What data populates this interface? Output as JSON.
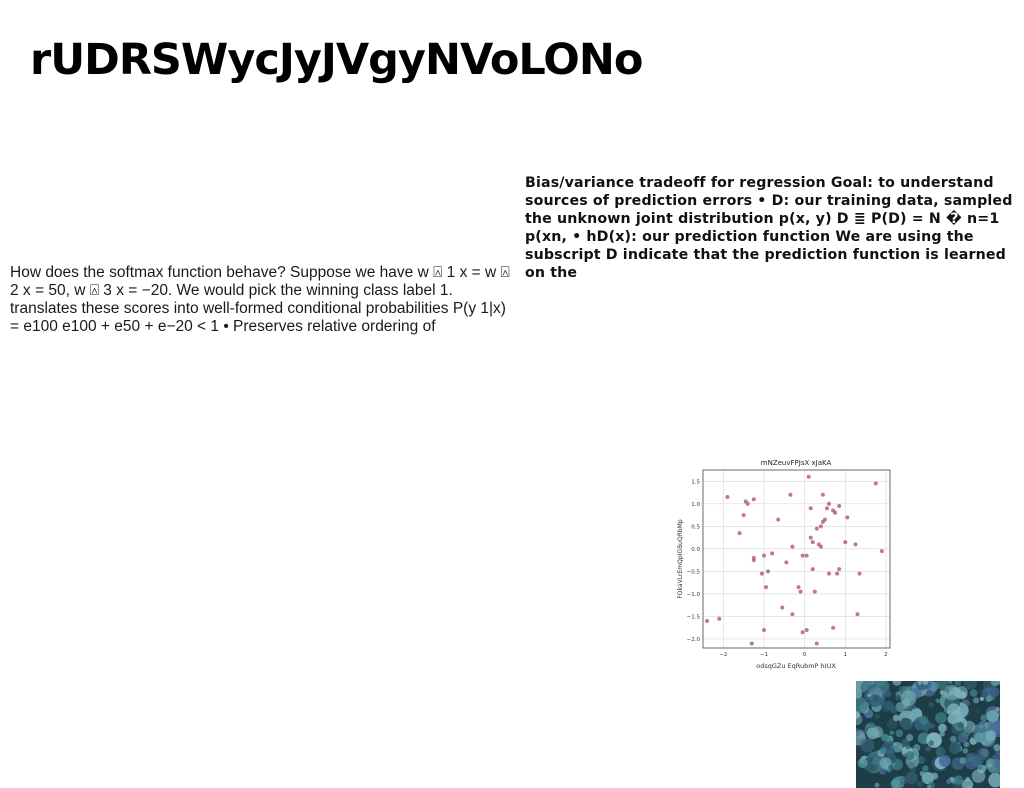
{
  "title": "rUDRSWycJyJVgyNVoLONo",
  "left_text": "How does the softmax function behave? Suppose we have w ⍓ 1 x = w ⍓ 2 x = 50, w ⍓ 3 x = −20. We would pick the winning class label 1. translates these scores into well-formed conditional probabilities P(y 1|x) = e100 e100 + e50 + e−20 < 1 • Preserves relative ordering of",
  "right_text": "Bias/variance tradeoff for regression Goal: to understand sources of prediction errors • D: our training data, sampled the unknown joint distribution p(x, y) D ≣ P(D) = N � n=1 p(xn, • hD(x): our prediction function We are using the subscript D indicate that the prediction function is learned on the",
  "chart_data": {
    "type": "scatter",
    "title": "mNZeuvFPJsX xJaKA",
    "xlabel": "odsqGZu EqRubmP hIUX",
    "ylabel": "FOkaVLrEmQpIGBuQRbMp",
    "xlim": [
      -2.5,
      2.1
    ],
    "ylim": [
      -2.2,
      1.75
    ],
    "xticks": [
      -2,
      -1,
      0,
      1,
      2
    ],
    "yticks": [
      -2.0,
      -1.5,
      -1.0,
      -0.5,
      0.0,
      0.5,
      1.0,
      1.5
    ],
    "ytick_labels": [
      "−2.0",
      "−1.5",
      "−1.0",
      "−0.5",
      "0.0",
      "0.5",
      "1.0",
      "1.5"
    ],
    "xtick_labels": [
      "−2",
      "−1",
      "0",
      "1",
      "2"
    ],
    "grid": true,
    "color": "#b5607b",
    "points": [
      [
        -2.4,
        -1.6
      ],
      [
        -2.1,
        -1.55
      ],
      [
        -1.9,
        1.15
      ],
      [
        -1.6,
        0.35
      ],
      [
        -1.5,
        0.75
      ],
      [
        -1.45,
        1.05
      ],
      [
        -1.4,
        1.0
      ],
      [
        -1.3,
        -2.1
      ],
      [
        -1.25,
        1.1
      ],
      [
        -1.25,
        -0.2
      ],
      [
        -1.25,
        -0.25
      ],
      [
        -1.05,
        -0.55
      ],
      [
        -1.0,
        -0.15
      ],
      [
        -1.0,
        -1.8
      ],
      [
        -0.95,
        -0.85
      ],
      [
        -0.9,
        -0.5
      ],
      [
        -0.8,
        -0.1
      ],
      [
        -0.65,
        0.65
      ],
      [
        -0.55,
        -1.3
      ],
      [
        -0.45,
        -0.3
      ],
      [
        -0.35,
        1.2
      ],
      [
        -0.3,
        0.05
      ],
      [
        -0.3,
        -1.45
      ],
      [
        -0.15,
        -0.85
      ],
      [
        -0.1,
        -0.95
      ],
      [
        -0.05,
        -0.15
      ],
      [
        -0.05,
        -1.85
      ],
      [
        0.05,
        -1.8
      ],
      [
        0.05,
        -0.15
      ],
      [
        0.1,
        1.6
      ],
      [
        0.15,
        0.25
      ],
      [
        0.15,
        0.9
      ],
      [
        0.2,
        0.15
      ],
      [
        0.2,
        -0.45
      ],
      [
        0.25,
        -0.95
      ],
      [
        0.3,
        0.45
      ],
      [
        0.3,
        -2.1
      ],
      [
        0.35,
        0.1
      ],
      [
        0.4,
        0.5
      ],
      [
        0.4,
        0.05
      ],
      [
        0.45,
        0.6
      ],
      [
        0.45,
        1.2
      ],
      [
        0.5,
        0.65
      ],
      [
        0.55,
        0.9
      ],
      [
        0.6,
        1.0
      ],
      [
        0.6,
        -0.55
      ],
      [
        0.7,
        0.85
      ],
      [
        0.7,
        -1.75
      ],
      [
        0.75,
        0.8
      ],
      [
        0.8,
        -0.55
      ],
      [
        0.85,
        0.95
      ],
      [
        0.85,
        -0.45
      ],
      [
        1.0,
        0.15
      ],
      [
        1.05,
        0.7
      ],
      [
        1.25,
        0.1
      ],
      [
        1.3,
        -1.45
      ],
      [
        1.35,
        -0.55
      ],
      [
        1.75,
        1.45
      ],
      [
        1.9,
        -0.05
      ]
    ]
  },
  "photo": {
    "bg": "#1f3d46",
    "colors": [
      "#3f7f86",
      "#5a98a0",
      "#2b5a66",
      "#6fa8b0",
      "#4a6f9a",
      "#7fb3c0",
      "#35607a"
    ]
  }
}
